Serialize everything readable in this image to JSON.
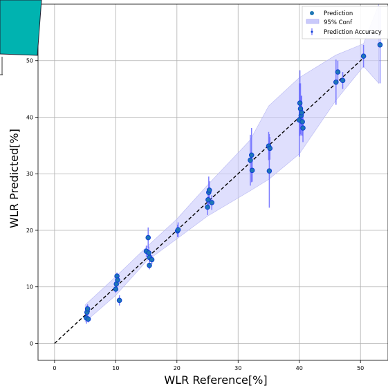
{
  "chart_data": {
    "type": "scatter",
    "title": "",
    "xlabel": "WLR Reference[%]",
    "ylabel": "WLR Predicted[%]",
    "xlim": [
      -2.7,
      54.5
    ],
    "ylim": [
      -3,
      60
    ],
    "xticks": [
      0,
      10,
      20,
      30,
      40,
      50
    ],
    "yticks": [
      0,
      10,
      20,
      30,
      40,
      50
    ],
    "grid": true,
    "legend_position": "top-right",
    "colors": {
      "prediction": "#1f77b4",
      "prediction_edge": "#0c3fd6",
      "errorbar": "#6a6aff",
      "conf_fill": "#c9c9fb",
      "reference_line": "#000000"
    },
    "legend": [
      {
        "label": "Prediction",
        "marker": "circle"
      },
      {
        "label": "95% Conf",
        "marker": "patch"
      },
      {
        "label": "Prediction Accuracy",
        "marker": "errorbar"
      }
    ],
    "reference_line": {
      "style": "dashed",
      "from": [
        0,
        0
      ],
      "to": [
        50.5,
        50.5
      ]
    },
    "confidence_band": {
      "x": [
        5,
        10,
        15,
        20,
        25,
        32,
        35,
        40,
        46,
        50.5,
        53
      ],
      "lower": [
        3.8,
        8.5,
        14.5,
        18.5,
        22.5,
        27.0,
        29.0,
        33.5,
        43.0,
        49.0,
        46.0
      ],
      "upper": [
        6.8,
        11.8,
        17.0,
        22.0,
        28.0,
        36.0,
        42.0,
        47.0,
        51.0,
        53.0,
        60.0
      ]
    },
    "points": [
      {
        "x": 5.2,
        "y": 4.5,
        "err": 1.0
      },
      {
        "x": 5.3,
        "y": 5.5,
        "err": 1.2
      },
      {
        "x": 5.4,
        "y": 6.1,
        "err": 0.8
      },
      {
        "x": 5.5,
        "y": 4.3,
        "err": 0.6
      },
      {
        "x": 10.0,
        "y": 9.6,
        "err": 0.7
      },
      {
        "x": 10.1,
        "y": 10.5,
        "err": 0.8
      },
      {
        "x": 10.2,
        "y": 11.9,
        "err": 0.6
      },
      {
        "x": 10.3,
        "y": 11.2,
        "err": 0.7
      },
      {
        "x": 10.6,
        "y": 7.6,
        "err": 0.9
      },
      {
        "x": 15.0,
        "y": 16.3,
        "err": 1.0
      },
      {
        "x": 15.3,
        "y": 18.7,
        "err": 1.8
      },
      {
        "x": 15.4,
        "y": 16.0,
        "err": 1.1
      },
      {
        "x": 15.5,
        "y": 15.2,
        "err": 0.8
      },
      {
        "x": 15.5,
        "y": 13.8,
        "err": 0.7
      },
      {
        "x": 15.9,
        "y": 14.8,
        "err": 0.8
      },
      {
        "x": 20.1,
        "y": 19.9,
        "err": 1.1
      },
      {
        "x": 20.2,
        "y": 20.1,
        "err": 1.3
      },
      {
        "x": 25.0,
        "y": 24.1,
        "err": 1.4
      },
      {
        "x": 25.1,
        "y": 25.4,
        "err": 1.6
      },
      {
        "x": 25.2,
        "y": 26.7,
        "err": 2.8
      },
      {
        "x": 25.3,
        "y": 27.1,
        "err": 1.6
      },
      {
        "x": 25.7,
        "y": 24.9,
        "err": 1.3
      },
      {
        "x": 32.0,
        "y": 32.4,
        "err": 4.5
      },
      {
        "x": 32.2,
        "y": 33.3,
        "err": 4.8
      },
      {
        "x": 32.3,
        "y": 30.6,
        "err": 2.0
      },
      {
        "x": 35.0,
        "y": 34.9,
        "err": 2.5
      },
      {
        "x": 35.1,
        "y": 30.5,
        "err": 6.5
      },
      {
        "x": 35.2,
        "y": 34.5,
        "err": 2.0
      },
      {
        "x": 40.0,
        "y": 39.5,
        "err": 6.5
      },
      {
        "x": 40.1,
        "y": 42.5,
        "err": 5.8
      },
      {
        "x": 40.2,
        "y": 41.5,
        "err": 4.5
      },
      {
        "x": 40.3,
        "y": 40.3,
        "err": 3.5
      },
      {
        "x": 40.4,
        "y": 40.8,
        "err": 3.0
      },
      {
        "x": 40.5,
        "y": 39.2,
        "err": 2.5
      },
      {
        "x": 40.6,
        "y": 38.1,
        "err": 2.5
      },
      {
        "x": 46.0,
        "y": 46.2,
        "err": 4.0
      },
      {
        "x": 46.3,
        "y": 48.0,
        "err": 2.0
      },
      {
        "x": 47.1,
        "y": 46.5,
        "err": 1.5
      },
      {
        "x": 50.5,
        "y": 50.8,
        "err": 2.0
      },
      {
        "x": 53.2,
        "y": 52.8,
        "err": 6.8
      }
    ]
  }
}
